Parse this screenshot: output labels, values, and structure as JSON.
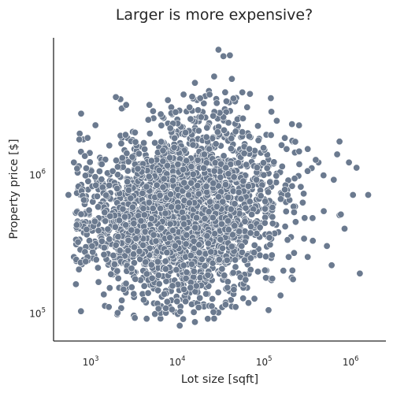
{
  "chart_data": {
    "type": "scatter",
    "title": "Larger is more expensive?",
    "xlabel": "Lot size [sqft]",
    "ylabel": "Property price [$]",
    "x_scale": "log",
    "y_scale": "log",
    "xlim": [
      350,
      2400000
    ],
    "ylim": [
      62000,
      9500000
    ],
    "x_ticks": [
      {
        "base": "10",
        "exp": "3",
        "value": 1000
      },
      {
        "base": "10",
        "exp": "4",
        "value": 10000
      },
      {
        "base": "10",
        "exp": "5",
        "value": 100000
      },
      {
        "base": "10",
        "exp": "6",
        "value": 1000000
      }
    ],
    "y_ticks": [
      {
        "base": "10",
        "exp": "5",
        "value": 100000
      },
      {
        "base": "10",
        "exp": "6",
        "value": 1000000
      }
    ],
    "grid": false,
    "marker_color": "#6b7a8f",
    "marker_edge_color": "#ffffff",
    "points": [
      [
        520,
        700000
      ],
      [
        600,
        1200000
      ],
      [
        600,
        250000
      ],
      [
        650,
        400000
      ],
      [
        800,
        600000
      ],
      [
        1200,
        1300000
      ],
      [
        2500,
        1800000
      ],
      [
        3000,
        1500000
      ],
      [
        5000,
        2500000
      ],
      [
        8000,
        3000000
      ],
      [
        12000,
        2800000
      ],
      [
        15000,
        4500000
      ],
      [
        19000,
        3200000
      ],
      [
        25000,
        5000000
      ],
      [
        28000,
        7800000
      ],
      [
        32000,
        7000000
      ],
      [
        38000,
        7100000
      ],
      [
        40000,
        4800000
      ],
      [
        45000,
        3500000
      ],
      [
        60000,
        3000000
      ],
      [
        80000,
        2200000
      ],
      [
        100000,
        1900000
      ],
      [
        150000,
        1600000
      ],
      [
        200000,
        1700000
      ],
      [
        300000,
        1500000
      ],
      [
        400000,
        1200000
      ],
      [
        700000,
        1700000
      ],
      [
        900000,
        1200000
      ],
      [
        1000000,
        700000
      ],
      [
        1100000,
        1100000
      ],
      [
        1500000,
        700000
      ],
      [
        1200000,
        190000
      ],
      [
        700000,
        500000
      ],
      [
        500000,
        300000
      ],
      [
        300000,
        250000
      ],
      [
        200000,
        200000
      ],
      [
        100000,
        200000
      ],
      [
        60000,
        150000
      ],
      [
        40000,
        110000
      ],
      [
        25000,
        90000
      ],
      [
        15000,
        85000
      ],
      [
        10000,
        80000
      ],
      [
        6000,
        90000
      ],
      [
        3000,
        130000
      ],
      [
        2000,
        150000
      ],
      [
        1500,
        220000
      ],
      [
        1000,
        300000
      ],
      [
        1100,
        900000
      ],
      [
        2000,
        500000
      ],
      [
        3000,
        350000
      ],
      [
        5000,
        600000
      ],
      [
        7000,
        900000
      ],
      [
        9000,
        1300000
      ],
      [
        12000,
        400000
      ],
      [
        20000,
        1000000
      ],
      [
        30000,
        700000
      ],
      [
        50000,
        400000
      ],
      [
        70000,
        900000
      ],
      [
        120000,
        600000
      ],
      [
        250000,
        800000
      ],
      [
        600000,
        900000
      ],
      [
        800000,
        400000
      ],
      [
        4000,
        200000
      ],
      [
        8000,
        150000
      ],
      [
        18000,
        200000
      ]
    ]
  }
}
